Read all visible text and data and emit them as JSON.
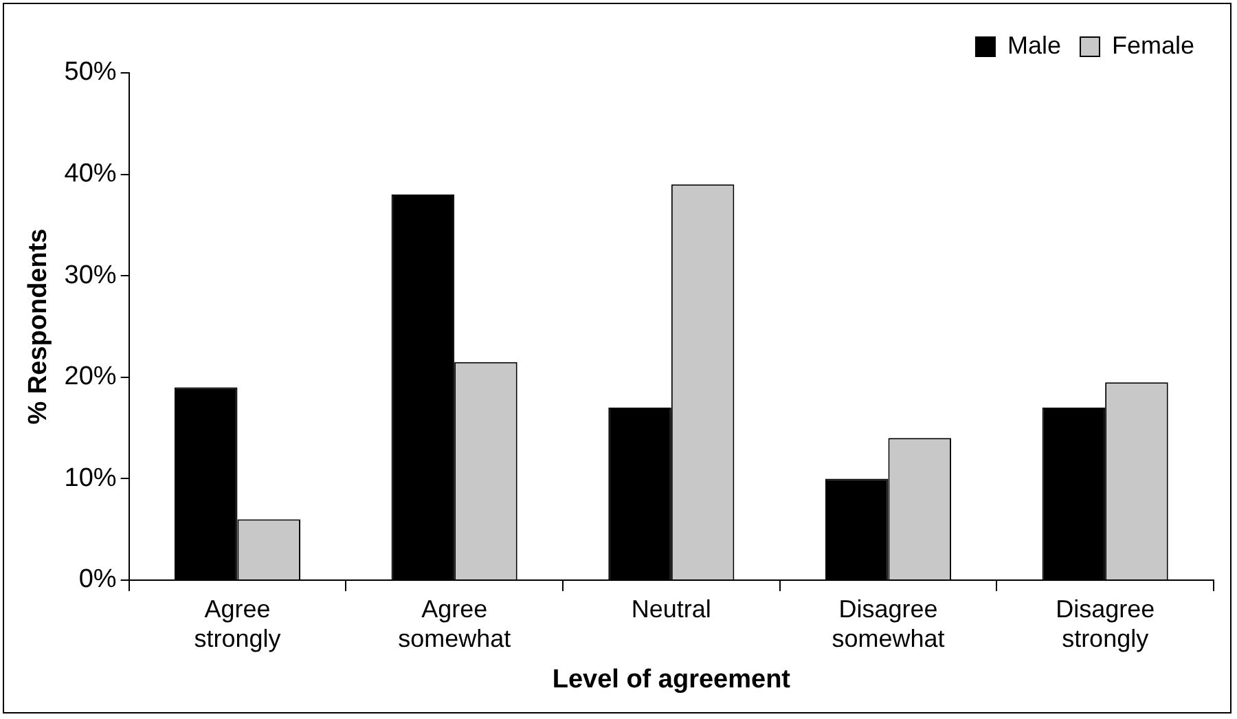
{
  "chart_data": {
    "type": "bar",
    "xlabel": "Level of agreement",
    "ylabel": "% Respondents",
    "categories": [
      "Agree strongly",
      "Agree somewhat",
      "Neutral",
      "Disagree somewhat",
      "Disagree strongly"
    ],
    "series": [
      {
        "name": "Male",
        "color": "#000000",
        "values": [
          19,
          38,
          17,
          10,
          17
        ]
      },
      {
        "name": "Female",
        "color": "#c8c8c8",
        "values": [
          6,
          21.5,
          39,
          14,
          19.5
        ]
      }
    ],
    "ylim": [
      0,
      50
    ],
    "yticks": [
      {
        "value": 0,
        "label": "0%"
      },
      {
        "value": 10,
        "label": "10%"
      },
      {
        "value": 20,
        "label": "20%"
      },
      {
        "value": 30,
        "label": "30%"
      },
      {
        "value": 40,
        "label": "40%"
      },
      {
        "value": 50,
        "label": "50%"
      }
    ],
    "grid": false,
    "legend": "top right"
  }
}
